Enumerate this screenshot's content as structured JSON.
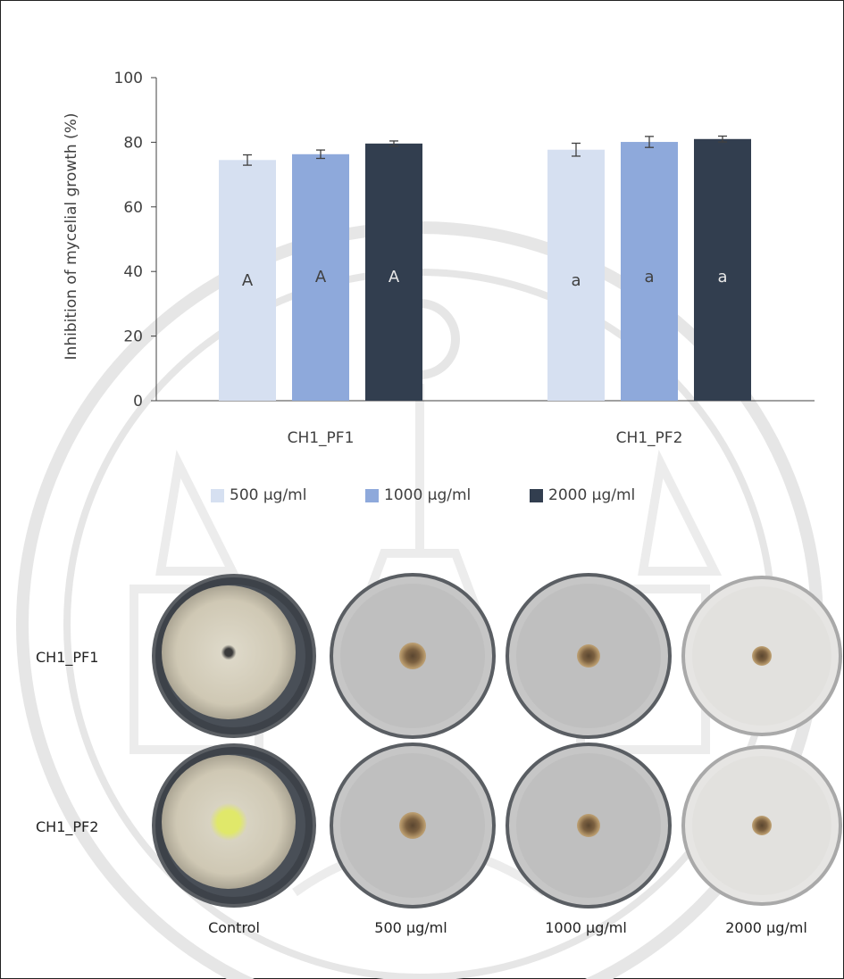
{
  "chart_data": {
    "type": "bar",
    "categories": [
      "CH1_PF1",
      "CH1_PF2"
    ],
    "series": [
      {
        "name": "500 µg/ml",
        "values": [
          74.5,
          77.7
        ],
        "errors": [
          1.6,
          2.0
        ],
        "letters": [
          "A",
          "a"
        ],
        "color": "#d6e0f1"
      },
      {
        "name": "1000 µg/ml",
        "values": [
          76.3,
          80.1
        ],
        "errors": [
          1.3,
          1.7
        ],
        "letters": [
          "A",
          "a"
        ],
        "color": "#8ea9db"
      },
      {
        "name": "2000 µg/ml",
        "values": [
          79.6,
          81.0
        ],
        "errors": [
          0.8,
          0.9
        ],
        "letters": [
          "A",
          "a"
        ],
        "color": "#323e4f"
      }
    ],
    "ylabel": "Inhibition of mycelial growth (%)",
    "ylim": [
      0,
      100
    ],
    "yticks": [
      0,
      20,
      40,
      60,
      80,
      100
    ],
    "legend_position": "bottom",
    "grid": false
  },
  "plates": {
    "rows": [
      "CH1_PF1",
      "CH1_PF2"
    ],
    "columns": [
      "Control",
      "500 µg/ml",
      "1000 µg/ml",
      "2000 µg/ml"
    ]
  }
}
